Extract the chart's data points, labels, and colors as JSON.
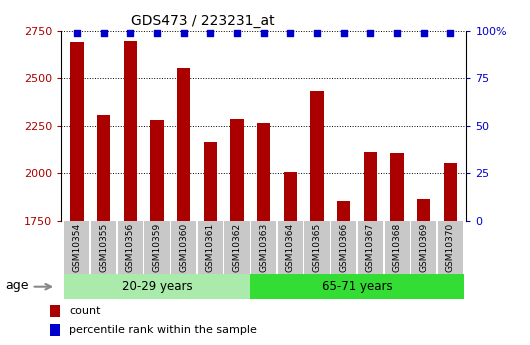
{
  "title": "GDS473 / 223231_at",
  "categories": [
    "GSM10354",
    "GSM10355",
    "GSM10356",
    "GSM10359",
    "GSM10360",
    "GSM10361",
    "GSM10362",
    "GSM10363",
    "GSM10364",
    "GSM10365",
    "GSM10366",
    "GSM10367",
    "GSM10368",
    "GSM10369",
    "GSM10370"
  ],
  "bar_values": [
    2690,
    2310,
    2700,
    2280,
    2555,
    2165,
    2285,
    2265,
    2005,
    2435,
    1855,
    2115,
    2105,
    1865,
    2055
  ],
  "percentile_values": [
    99,
    99,
    99,
    99,
    99,
    99,
    99,
    99,
    99,
    99,
    99,
    99,
    99,
    99,
    99
  ],
  "bar_color": "#AA0000",
  "percentile_color": "#0000CC",
  "ylim_left": [
    1750,
    2750
  ],
  "ylim_right": [
    0,
    100
  ],
  "yticks_left": [
    1750,
    2000,
    2250,
    2500,
    2750
  ],
  "yticks_right": [
    0,
    25,
    50,
    75,
    100
  ],
  "ytick_labels_right": [
    "0",
    "25",
    "50",
    "75",
    "100%"
  ],
  "group1_label": "20-29 years",
  "group2_label": "65-71 years",
  "group1_indices": [
    0,
    1,
    2,
    3,
    4,
    5,
    6
  ],
  "group2_indices": [
    7,
    8,
    9,
    10,
    11,
    12,
    13,
    14
  ],
  "age_label": "age",
  "legend_count_label": "count",
  "legend_percentile_label": "percentile rank within the sample",
  "group1_color": "#AAEAAA",
  "group2_color": "#33DD33",
  "tick_bg_color": "#C8C8C8",
  "bar_width": 0.5,
  "grid_color": "black",
  "grid_linestyle": "dotted"
}
